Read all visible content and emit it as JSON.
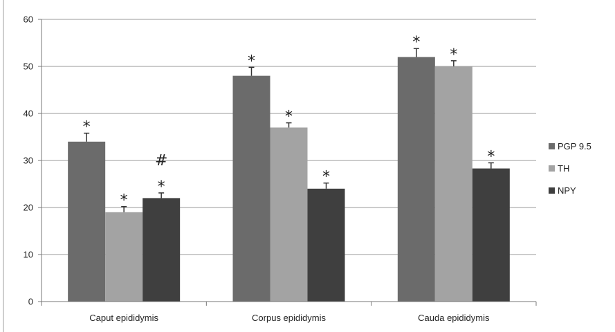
{
  "chart_data": {
    "type": "bar",
    "categories": [
      "Caput epididymis",
      "Corpus epididymis",
      "Cauda epididymis"
    ],
    "series": [
      {
        "name": "PGP 9.5",
        "color": "#6b6b6b",
        "values": [
          34,
          48,
          52
        ],
        "errors": [
          1.8,
          1.8,
          1.8
        ],
        "annotations": [
          [
            "*"
          ],
          [
            "*"
          ],
          [
            "*"
          ]
        ]
      },
      {
        "name": "TH",
        "color": "#a3a3a3",
        "values": [
          19,
          37,
          50
        ],
        "errors": [
          1.2,
          1.0,
          1.2
        ],
        "annotations": [
          [
            "*"
          ],
          [
            "*"
          ],
          [
            "*"
          ]
        ]
      },
      {
        "name": "NPY",
        "color": "#3f3f3f",
        "values": [
          22,
          24,
          28.3
        ],
        "errors": [
          1.1,
          1.2,
          1.2
        ],
        "annotations": [
          [
            "*",
            "#"
          ],
          [
            "*"
          ],
          [
            "*"
          ]
        ]
      }
    ],
    "yticks": [
      0,
      10,
      20,
      30,
      40,
      50,
      60
    ],
    "ylim": [
      0,
      60
    ],
    "grid": true,
    "legend_position": "right",
    "title": "",
    "xlabel": "",
    "ylabel": ""
  }
}
